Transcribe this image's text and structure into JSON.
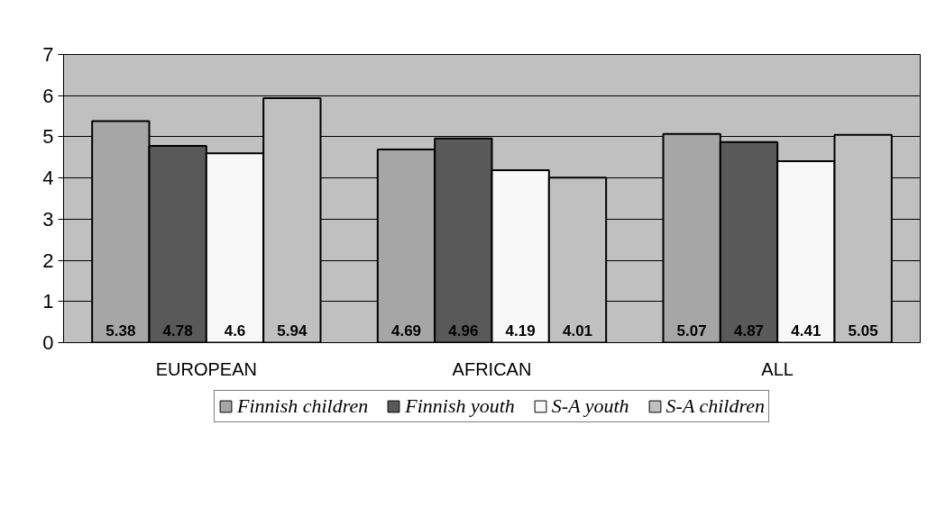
{
  "chart_data": {
    "type": "bar",
    "categories": [
      "EUROPEAN",
      "AFRICAN",
      "ALL"
    ],
    "series": [
      {
        "name": "Finnish children",
        "color": "#a6a6a6",
        "values": [
          5.38,
          4.69,
          5.07
        ]
      },
      {
        "name": "Finnish youth",
        "color": "#595959",
        "values": [
          4.78,
          4.96,
          4.87
        ]
      },
      {
        "name": "S-A youth",
        "color": "#f8f8f8",
        "values": [
          4.6,
          4.19,
          4.41
        ]
      },
      {
        "name": "S-A children",
        "color": "#c0c0c0",
        "values": [
          5.94,
          4.01,
          5.05
        ]
      }
    ],
    "ylim": [
      0,
      7
    ],
    "yticks": [
      0,
      1,
      2,
      3,
      4,
      5,
      6,
      7
    ],
    "grid": "y",
    "legend": "bottom",
    "data_labels": true
  }
}
